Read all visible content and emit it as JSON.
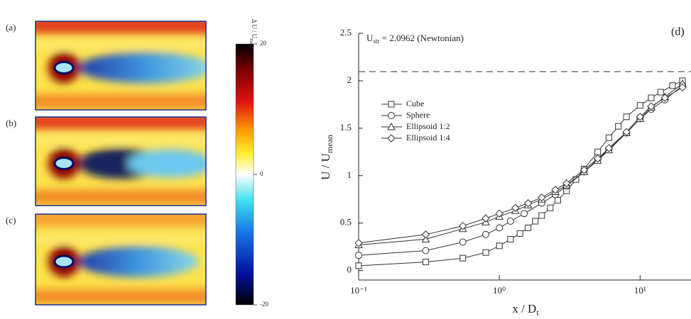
{
  "chart_data": [
    {
      "type": "heatmap",
      "panels": [
        "(a)",
        "(b)",
        "(c)"
      ],
      "colorbar_label": {
        "main": "Δ U / U",
        "sub": "mean"
      },
      "clim": [
        -20,
        20
      ],
      "cticks": [
        20,
        0,
        -20
      ]
    },
    {
      "type": "line",
      "label": "(d)",
      "annotation": {
        "main": "U",
        "sub": "str",
        "rest": " = 2.0962 (Newtonian)",
        "value": 2.0962
      },
      "x_label": {
        "main": "x / D",
        "sub": "t"
      },
      "y_label": {
        "main": "U / U",
        "sub": "mean"
      },
      "log_x": true,
      "xlim": [
        0.1,
        23
      ],
      "xticks": [
        {
          "value": 0.1,
          "label": "10⁻¹"
        },
        {
          "value": 1,
          "label": "10⁰"
        },
        {
          "value": 10,
          "label": "10¹"
        }
      ],
      "ylim": [
        -0.1,
        2.5
      ],
      "yticks": [
        0,
        0.5,
        1,
        1.5,
        2,
        2.5
      ],
      "series": [
        {
          "name": "Cube",
          "marker": "square",
          "color": "#333333",
          "x": [
            0.1,
            0.3,
            0.55,
            0.8,
            1.0,
            1.2,
            1.4,
            1.6,
            1.8,
            2.0,
            2.3,
            2.6,
            3,
            3.5,
            4,
            5,
            6,
            7,
            8,
            10,
            12,
            14,
            17,
            20
          ],
          "values": [
            0.05,
            0.09,
            0.13,
            0.19,
            0.26,
            0.33,
            0.39,
            0.45,
            0.52,
            0.58,
            0.66,
            0.74,
            0.84,
            0.96,
            1.07,
            1.25,
            1.4,
            1.52,
            1.62,
            1.74,
            1.82,
            1.88,
            1.95,
            2.0
          ]
        },
        {
          "name": "Sphere",
          "marker": "circle",
          "color": "#333333",
          "x": [
            0.1,
            0.3,
            0.55,
            0.8,
            1.0,
            1.2,
            1.5,
            2,
            2.5,
            3,
            4,
            5,
            6,
            8,
            10,
            12,
            15,
            20
          ],
          "values": [
            0.16,
            0.21,
            0.3,
            0.38,
            0.45,
            0.52,
            0.6,
            0.71,
            0.8,
            0.89,
            1.04,
            1.17,
            1.28,
            1.45,
            1.6,
            1.7,
            1.8,
            1.95
          ]
        },
        {
          "name": "Ellipsoid 1:2",
          "marker": "triangle",
          "color": "#333333",
          "x": [
            0.1,
            0.3,
            0.55,
            0.8,
            1.0,
            1.3,
            1.6,
            2,
            2.5,
            3,
            4,
            5,
            6,
            8,
            10,
            12,
            15,
            20
          ],
          "values": [
            0.27,
            0.33,
            0.44,
            0.51,
            0.57,
            0.63,
            0.69,
            0.75,
            0.83,
            0.9,
            1.04,
            1.16,
            1.27,
            1.45,
            1.6,
            1.72,
            1.83,
            1.97
          ]
        },
        {
          "name": "Ellipsoid 1:4",
          "marker": "diamond",
          "color": "#333333",
          "x": [
            0.1,
            0.3,
            0.55,
            0.8,
            1.0,
            1.3,
            1.6,
            2,
            2.5,
            3,
            4,
            5,
            6,
            8,
            10,
            12,
            15,
            20
          ],
          "values": [
            0.29,
            0.38,
            0.47,
            0.55,
            0.6,
            0.66,
            0.71,
            0.77,
            0.85,
            0.92,
            1.06,
            1.18,
            1.29,
            1.46,
            1.62,
            1.73,
            1.82,
            1.93
          ]
        }
      ]
    }
  ]
}
